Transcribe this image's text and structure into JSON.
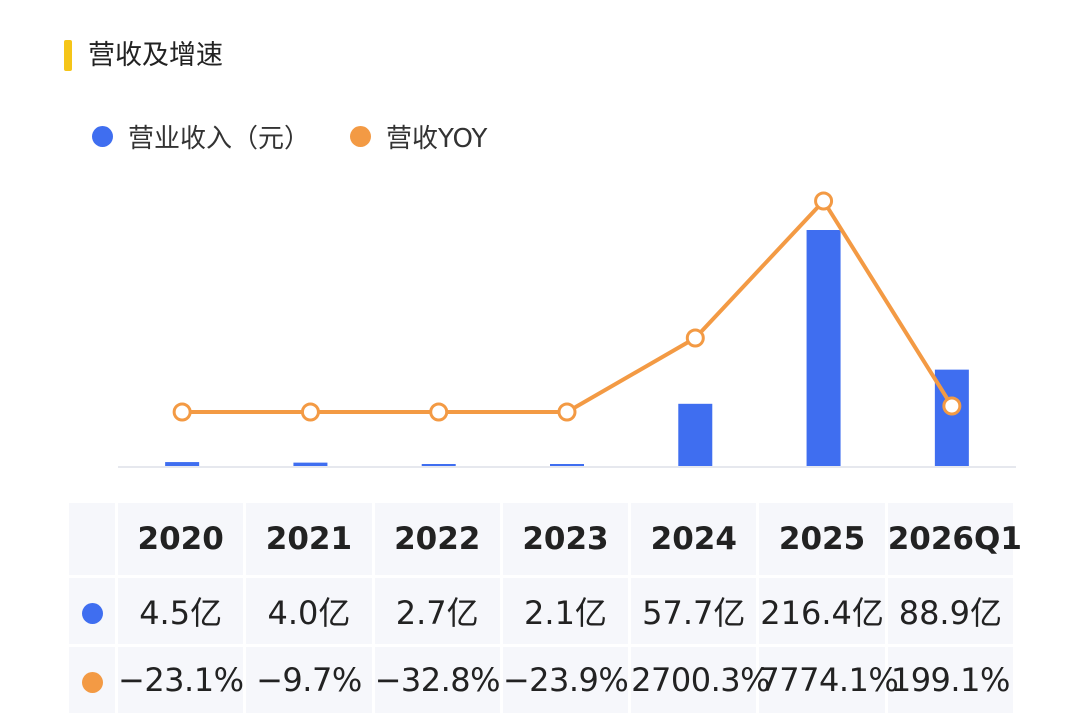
{
  "page": {
    "title": "营收及增速",
    "accent_color": "#f5c518"
  },
  "legend": [
    {
      "label": "营业收入（元）",
      "color": "#3f6ef0"
    },
    {
      "label": "营收YOY",
      "color": "#f39a44"
    }
  ],
  "chart_data": {
    "type": "bar",
    "categories": [
      "2020",
      "2021",
      "2022",
      "2023",
      "2024",
      "2025",
      "2026Q1"
    ],
    "series": [
      {
        "name": "营业收入（元）",
        "type": "bar",
        "color": "#3f6ef0",
        "values": [
          4.5,
          4.0,
          2.7,
          2.1,
          57.7,
          216.4,
          88.9
        ]
      },
      {
        "name": "营收YOY",
        "type": "line",
        "color": "#f39a44",
        "values": [
          -23.1,
          -9.7,
          -32.8,
          -23.9,
          2700.3,
          7774.1,
          199.1
        ]
      }
    ],
    "grid": false,
    "legend_position": "top-left"
  },
  "table": {
    "columns": [
      "2020",
      "2021",
      "2022",
      "2023",
      "2024",
      "2025",
      "2026Q1"
    ],
    "rows": [
      {
        "marker_color": "#3f6ef0",
        "cells": [
          "4.5亿",
          "4.0亿",
          "2.7亿",
          "2.1亿",
          "57.7亿",
          "216.4亿",
          "88.9亿"
        ]
      },
      {
        "marker_color": "#f39a44",
        "cells": [
          "−23.1%",
          "−9.7%",
          "−32.8%",
          "−23.9%",
          "2700.3%",
          "7774.1%",
          "199.1%"
        ]
      }
    ]
  }
}
